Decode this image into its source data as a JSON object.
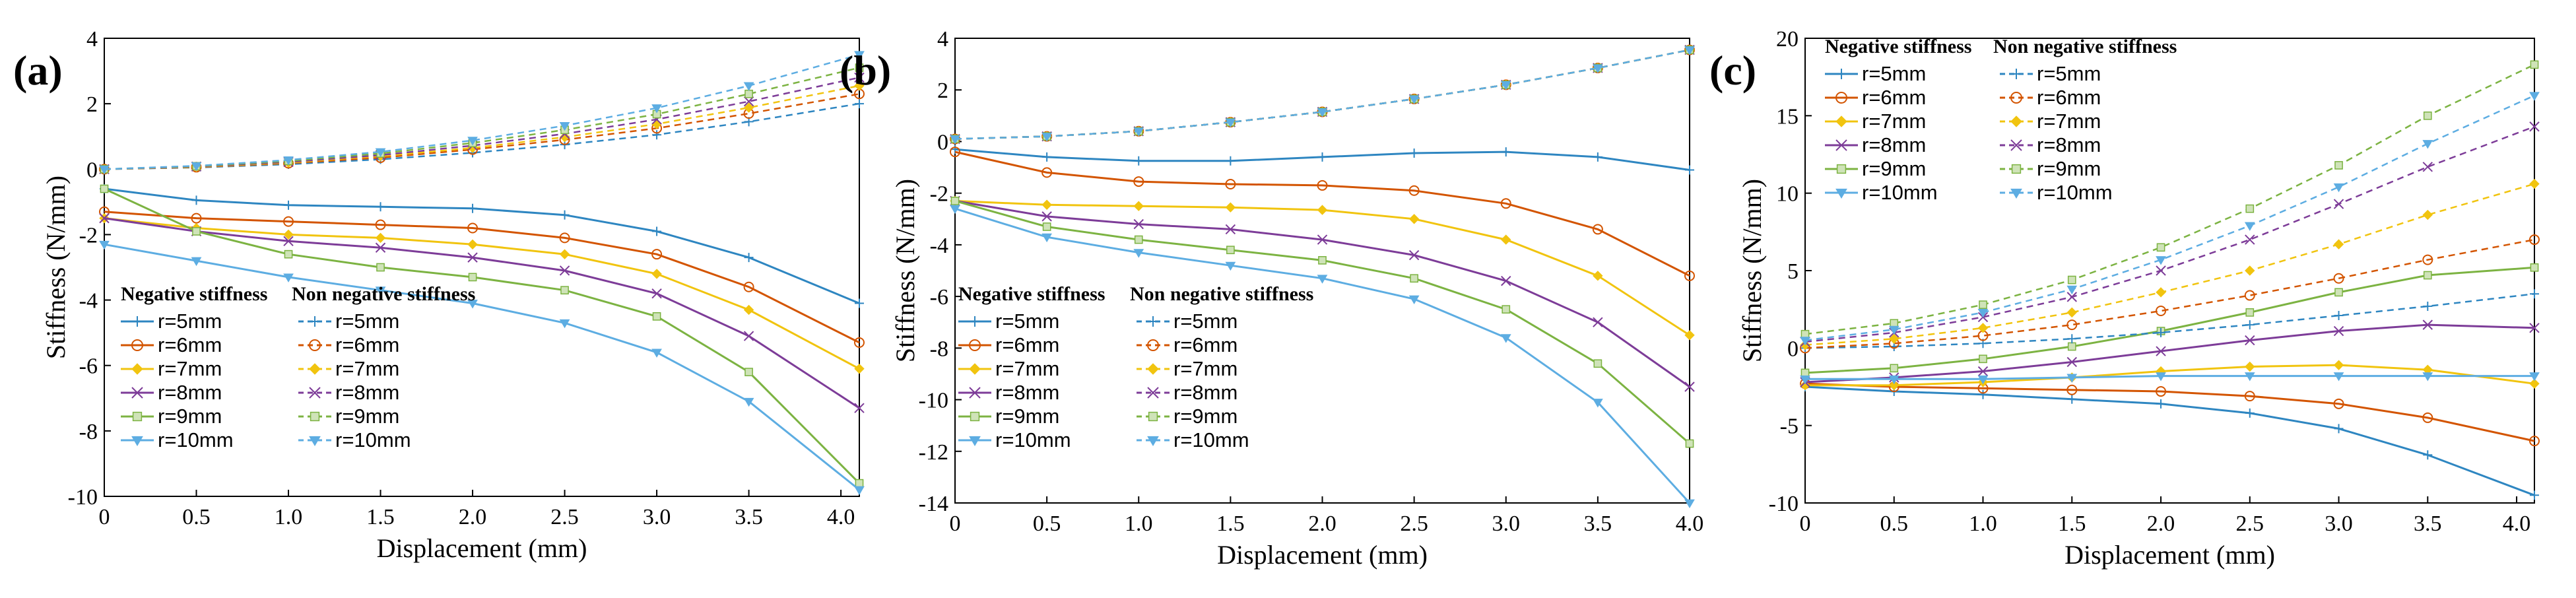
{
  "chart_data": [
    {
      "type": "line",
      "panel_label": "(a)",
      "xlabel": "Displacement (mm)",
      "ylabel": "Stiffness (N/mm)",
      "xlim": [
        0,
        4.1
      ],
      "ylim": [
        -10,
        4
      ],
      "xticks": [
        "0",
        "0.5",
        "1.0",
        "1.5",
        "2.0",
        "2.5",
        "3.0",
        "3.5",
        "4.0"
      ],
      "yticks": [
        "4",
        "2",
        "0",
        "-2",
        "-4",
        "-6",
        "-8",
        "-10"
      ],
      "legend_titles": [
        "Negative stiffness",
        "Non negative stiffness"
      ],
      "series": [
        {
          "name": "r=5mm",
          "group": "negative",
          "x": [
            0,
            0.5,
            1.0,
            1.5,
            2.0,
            2.5,
            3.0,
            3.5,
            4.1
          ],
          "values": [
            -0.6,
            -0.95,
            -1.1,
            -1.15,
            -1.2,
            -1.4,
            -1.9,
            -2.7,
            -4.1
          ]
        },
        {
          "name": "r=6mm",
          "group": "negative",
          "x": [
            0,
            0.5,
            1.0,
            1.5,
            2.0,
            2.5,
            3.0,
            3.5,
            4.1
          ],
          "values": [
            -1.3,
            -1.5,
            -1.6,
            -1.7,
            -1.8,
            -2.1,
            -2.6,
            -3.6,
            -5.3
          ]
        },
        {
          "name": "r=7mm",
          "group": "negative",
          "x": [
            0,
            0.5,
            1.0,
            1.5,
            2.0,
            2.5,
            3.0,
            3.5,
            4.1
          ],
          "values": [
            -1.5,
            -1.8,
            -2.0,
            -2.1,
            -2.3,
            -2.6,
            -3.2,
            -4.3,
            -6.1
          ]
        },
        {
          "name": "r=8mm",
          "group": "negative",
          "x": [
            0,
            0.5,
            1.0,
            1.5,
            2.0,
            2.5,
            3.0,
            3.5,
            4.1
          ],
          "values": [
            -1.5,
            -1.9,
            -2.2,
            -2.4,
            -2.7,
            -3.1,
            -3.8,
            -5.1,
            -7.3
          ]
        },
        {
          "name": "r=9mm",
          "group": "negative",
          "x": [
            0,
            0.5,
            1.0,
            1.5,
            2.0,
            2.5,
            3.0,
            3.5,
            4.1
          ],
          "values": [
            -0.6,
            -1.9,
            -2.6,
            -3.0,
            -3.3,
            -3.7,
            -4.5,
            -6.2,
            -9.6
          ]
        },
        {
          "name": "r=10mm",
          "group": "negative",
          "x": [
            0,
            0.5,
            1.0,
            1.5,
            2.0,
            2.5,
            3.0,
            3.5,
            4.1
          ],
          "values": [
            -2.3,
            -2.8,
            -3.3,
            -3.7,
            -4.1,
            -4.7,
            -5.6,
            -7.1,
            -9.8
          ]
        },
        {
          "name": "r=5mm",
          "group": "non-negative",
          "x": [
            0,
            0.5,
            1.0,
            1.5,
            2.0,
            2.5,
            3.0,
            3.5,
            4.1
          ],
          "values": [
            0.0,
            0.05,
            0.15,
            0.3,
            0.5,
            0.75,
            1.05,
            1.45,
            2.0
          ]
        },
        {
          "name": "r=6mm",
          "group": "non-negative",
          "x": [
            0,
            0.5,
            1.0,
            1.5,
            2.0,
            2.5,
            3.0,
            3.5,
            4.1
          ],
          "values": [
            0.0,
            0.06,
            0.18,
            0.35,
            0.6,
            0.9,
            1.25,
            1.7,
            2.3
          ]
        },
        {
          "name": "r=7mm",
          "group": "non-negative",
          "x": [
            0,
            0.5,
            1.0,
            1.5,
            2.0,
            2.5,
            3.0,
            3.5,
            4.1
          ],
          "values": [
            0.0,
            0.07,
            0.2,
            0.4,
            0.65,
            0.98,
            1.38,
            1.88,
            2.55
          ]
        },
        {
          "name": "r=8mm",
          "group": "non-negative",
          "x": [
            0,
            0.5,
            1.0,
            1.5,
            2.0,
            2.5,
            3.0,
            3.5,
            4.1
          ],
          "values": [
            0.0,
            0.08,
            0.22,
            0.43,
            0.72,
            1.08,
            1.52,
            2.07,
            2.8
          ]
        },
        {
          "name": "r=9mm",
          "group": "non-negative",
          "x": [
            0,
            0.5,
            1.0,
            1.5,
            2.0,
            2.5,
            3.0,
            3.5,
            4.1
          ],
          "values": [
            0.0,
            0.09,
            0.25,
            0.48,
            0.8,
            1.2,
            1.68,
            2.3,
            3.1
          ]
        },
        {
          "name": "r=10mm",
          "group": "non-negative",
          "x": [
            0,
            0.5,
            1.0,
            1.5,
            2.0,
            2.5,
            3.0,
            3.5,
            4.1
          ],
          "values": [
            0.0,
            0.1,
            0.28,
            0.53,
            0.88,
            1.33,
            1.87,
            2.55,
            3.5
          ]
        }
      ]
    },
    {
      "type": "line",
      "panel_label": "(b)",
      "xlabel": "Displacement (mm)",
      "ylabel": "Stiffness (N/mm)",
      "xlim": [
        0,
        4.0
      ],
      "ylim": [
        -14,
        4
      ],
      "xticks": [
        "0",
        "0.5",
        "1.0",
        "1.5",
        "2.0",
        "2.5",
        "3.0",
        "3.5",
        "4.0"
      ],
      "yticks": [
        "4",
        "2",
        "0",
        "-2",
        "-4",
        "-6",
        "-8",
        "-10",
        "-12",
        "-14"
      ],
      "legend_titles": [
        "Negative stiffness",
        "Non negative stiffness"
      ],
      "series": [
        {
          "name": "r=5mm",
          "group": "negative",
          "x": [
            0,
            0.5,
            1.0,
            1.5,
            2.0,
            2.5,
            3.0,
            3.5,
            4.0
          ],
          "values": [
            -0.3,
            -0.6,
            -0.75,
            -0.75,
            -0.6,
            -0.45,
            -0.4,
            -0.6,
            -1.1
          ]
        },
        {
          "name": "r=6mm",
          "group": "negative",
          "x": [
            0,
            0.5,
            1.0,
            1.5,
            2.0,
            2.5,
            3.0,
            3.5,
            4.0
          ],
          "values": [
            -0.4,
            -1.2,
            -1.55,
            -1.65,
            -1.7,
            -1.9,
            -2.4,
            -3.4,
            -5.2
          ]
        },
        {
          "name": "r=7mm",
          "group": "negative",
          "x": [
            0,
            0.5,
            1.0,
            1.5,
            2.0,
            2.5,
            3.0,
            3.5,
            4.0
          ],
          "values": [
            -2.3,
            -2.45,
            -2.5,
            -2.55,
            -2.65,
            -3.0,
            -3.8,
            -5.2,
            -7.5
          ]
        },
        {
          "name": "r=8mm",
          "group": "negative",
          "x": [
            0,
            0.5,
            1.0,
            1.5,
            2.0,
            2.5,
            3.0,
            3.5,
            4.0
          ],
          "values": [
            -2.3,
            -2.9,
            -3.2,
            -3.4,
            -3.8,
            -4.4,
            -5.4,
            -7.0,
            -9.5
          ]
        },
        {
          "name": "r=9mm",
          "group": "negative",
          "x": [
            0,
            0.5,
            1.0,
            1.5,
            2.0,
            2.5,
            3.0,
            3.5,
            4.0
          ],
          "values": [
            -2.3,
            -3.3,
            -3.8,
            -4.2,
            -4.6,
            -5.3,
            -6.5,
            -8.6,
            -11.7
          ]
        },
        {
          "name": "r=10mm",
          "group": "negative",
          "x": [
            0,
            0.5,
            1.0,
            1.5,
            2.0,
            2.5,
            3.0,
            3.5,
            4.0
          ],
          "values": [
            -2.6,
            -3.7,
            -4.3,
            -4.8,
            -5.3,
            -6.1,
            -7.6,
            -10.1,
            -14.0
          ]
        },
        {
          "name": "r=5mm",
          "group": "non-negative",
          "x": [
            0,
            0.5,
            1.0,
            1.5,
            2.0,
            2.5,
            3.0,
            3.5,
            4.0
          ],
          "values": [
            0.1,
            0.2,
            0.4,
            0.75,
            1.15,
            1.65,
            2.2,
            2.85,
            3.55
          ]
        },
        {
          "name": "r=6mm",
          "group": "non-negative",
          "x": [
            0,
            0.5,
            1.0,
            1.5,
            2.0,
            2.5,
            3.0,
            3.5,
            4.0
          ],
          "values": [
            0.1,
            0.2,
            0.4,
            0.75,
            1.15,
            1.65,
            2.2,
            2.85,
            3.55
          ]
        },
        {
          "name": "r=7mm",
          "group": "non-negative",
          "x": [
            0,
            0.5,
            1.0,
            1.5,
            2.0,
            2.5,
            3.0,
            3.5,
            4.0
          ],
          "values": [
            0.1,
            0.2,
            0.4,
            0.75,
            1.15,
            1.65,
            2.2,
            2.85,
            3.55
          ]
        },
        {
          "name": "r=8mm",
          "group": "non-negative",
          "x": [
            0,
            0.5,
            1.0,
            1.5,
            2.0,
            2.5,
            3.0,
            3.5,
            4.0
          ],
          "values": [
            0.1,
            0.2,
            0.4,
            0.75,
            1.15,
            1.65,
            2.2,
            2.85,
            3.55
          ]
        },
        {
          "name": "r=9mm",
          "group": "non-negative",
          "x": [
            0,
            0.5,
            1.0,
            1.5,
            2.0,
            2.5,
            3.0,
            3.5,
            4.0
          ],
          "values": [
            0.1,
            0.2,
            0.4,
            0.75,
            1.15,
            1.65,
            2.2,
            2.85,
            3.55
          ]
        },
        {
          "name": "r=10mm",
          "group": "non-negative",
          "x": [
            0,
            0.5,
            1.0,
            1.5,
            2.0,
            2.5,
            3.0,
            3.5,
            4.0
          ],
          "values": [
            0.1,
            0.2,
            0.4,
            0.75,
            1.15,
            1.65,
            2.2,
            2.85,
            3.55
          ]
        }
      ]
    },
    {
      "type": "line",
      "panel_label": "(c)",
      "xlabel": "Displacement (mm)",
      "ylabel": "Stiffness (N/mm)",
      "xlim": [
        0,
        4.1
      ],
      "ylim": [
        -10,
        20
      ],
      "xticks": [
        "0",
        "0.5",
        "1.0",
        "1.5",
        "2.0",
        "2.5",
        "3.0",
        "3.5",
        "4.0"
      ],
      "yticks": [
        "20",
        "15",
        "10",
        "5",
        "0",
        "-5",
        "-10"
      ],
      "legend_titles": [
        "Negative stiffness",
        "Non negative stiffness"
      ],
      "series": [
        {
          "name": "r=5mm",
          "group": "negative",
          "x": [
            0,
            0.5,
            1.0,
            1.5,
            2.0,
            2.5,
            3.0,
            3.5,
            4.1
          ],
          "values": [
            -2.5,
            -2.8,
            -3.0,
            -3.3,
            -3.6,
            -4.2,
            -5.2,
            -6.9,
            -9.5
          ]
        },
        {
          "name": "r=6mm",
          "group": "negative",
          "x": [
            0,
            0.5,
            1.0,
            1.5,
            2.0,
            2.5,
            3.0,
            3.5,
            4.1
          ],
          "values": [
            -2.3,
            -2.5,
            -2.6,
            -2.7,
            -2.8,
            -3.1,
            -3.6,
            -4.5,
            -6.0
          ]
        },
        {
          "name": "r=7mm",
          "group": "negative",
          "x": [
            0,
            0.5,
            1.0,
            1.5,
            2.0,
            2.5,
            3.0,
            3.5,
            4.1
          ],
          "values": [
            -2.4,
            -2.4,
            -2.2,
            -1.9,
            -1.5,
            -1.2,
            -1.1,
            -1.4,
            -2.3
          ]
        },
        {
          "name": "r=8mm",
          "group": "negative",
          "x": [
            0,
            0.5,
            1.0,
            1.5,
            2.0,
            2.5,
            3.0,
            3.5,
            4.1
          ],
          "values": [
            -2.2,
            -1.9,
            -1.5,
            -0.9,
            -0.2,
            0.5,
            1.1,
            1.5,
            1.3
          ]
        },
        {
          "name": "r=9mm",
          "group": "negative",
          "x": [
            0,
            0.5,
            1.0,
            1.5,
            2.0,
            2.5,
            3.0,
            3.5,
            4.1
          ],
          "values": [
            -1.6,
            -1.3,
            -0.7,
            0.1,
            1.1,
            2.3,
            3.6,
            4.7,
            5.2
          ]
        },
        {
          "name": "r=10mm",
          "group": "negative",
          "x": [
            0,
            0.5,
            1.0,
            1.5,
            2.0,
            2.5,
            3.0,
            3.5,
            4.1
          ],
          "values": [
            -2.0,
            -2.0,
            -2.0,
            -1.9,
            -1.8,
            -1.8,
            -1.8,
            -1.8,
            -1.8
          ]
        },
        {
          "name": "r=5mm",
          "group": "non-negative",
          "x": [
            0,
            0.5,
            1.0,
            1.5,
            2.0,
            2.5,
            3.0,
            3.5,
            4.1
          ],
          "values": [
            0.0,
            0.1,
            0.3,
            0.6,
            1.0,
            1.5,
            2.1,
            2.7,
            3.5
          ]
        },
        {
          "name": "r=6mm",
          "group": "non-negative",
          "x": [
            0,
            0.5,
            1.0,
            1.5,
            2.0,
            2.5,
            3.0,
            3.5,
            4.1
          ],
          "values": [
            0.0,
            0.3,
            0.8,
            1.5,
            2.4,
            3.4,
            4.5,
            5.7,
            7.0
          ]
        },
        {
          "name": "r=7mm",
          "group": "non-negative",
          "x": [
            0,
            0.5,
            1.0,
            1.5,
            2.0,
            2.5,
            3.0,
            3.5,
            4.1
          ],
          "values": [
            0.2,
            0.6,
            1.3,
            2.3,
            3.6,
            5.0,
            6.7,
            8.6,
            10.6
          ]
        },
        {
          "name": "r=8mm",
          "group": "non-negative",
          "x": [
            0,
            0.5,
            1.0,
            1.5,
            2.0,
            2.5,
            3.0,
            3.5,
            4.1
          ],
          "values": [
            0.4,
            1.0,
            2.0,
            3.3,
            5.0,
            7.0,
            9.3,
            11.7,
            14.3
          ]
        },
        {
          "name": "r=9mm",
          "group": "non-negative",
          "x": [
            0,
            0.5,
            1.0,
            1.5,
            2.0,
            2.5,
            3.0,
            3.5,
            4.1
          ],
          "values": [
            0.9,
            1.6,
            2.8,
            4.4,
            6.5,
            9.0,
            11.8,
            15.0,
            18.3
          ]
        },
        {
          "name": "r=10mm",
          "group": "non-negative",
          "x": [
            0,
            0.5,
            1.0,
            1.5,
            2.0,
            2.5,
            3.0,
            3.5,
            4.1
          ],
          "values": [
            0.5,
            1.2,
            2.3,
            3.8,
            5.7,
            7.9,
            10.4,
            13.2,
            16.3
          ]
        }
      ]
    }
  ],
  "series_colors": [
    "#2e86c1",
    "#d35400",
    "#f1c40f",
    "#7d3c98",
    "#7cb342",
    "#5dade2"
  ],
  "series_markers": [
    "plus",
    "circle",
    "diamond",
    "cross",
    "square",
    "triangle-down"
  ]
}
